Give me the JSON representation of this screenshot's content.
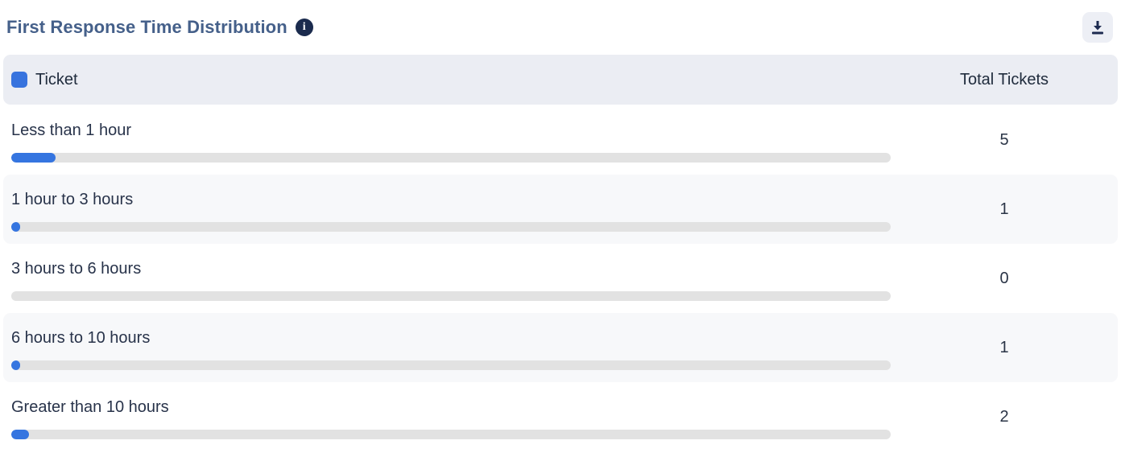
{
  "header": {
    "title": "First Response Time Distribution",
    "info_icon": "info-icon",
    "info_glyph": "i",
    "download_icon": "download-icon"
  },
  "colors": {
    "accent_blue": "#3575e0",
    "legend_blue": "#3773de",
    "title_color": "#45608a",
    "info_badge_bg": "#1b2b4e",
    "header_band_bg": "#ebedf3",
    "alt_row_bg": "#f7f8fa",
    "bar_track": "#e2e2e2"
  },
  "table": {
    "columns": {
      "ticket": "Ticket",
      "total": "Total Tickets"
    },
    "rows": [
      {
        "label": "Less than 1 hour",
        "value": "5",
        "bar_percent": 5
      },
      {
        "label": "1 hour to 3 hours",
        "value": "1",
        "bar_percent": 1
      },
      {
        "label": "3 hours to 6 hours",
        "value": "0",
        "bar_percent": 0
      },
      {
        "label": "6 hours to 10 hours",
        "value": "1",
        "bar_percent": 1
      },
      {
        "label": "Greater than 10 hours",
        "value": "2",
        "bar_percent": 2
      }
    ]
  },
  "chart_data": {
    "type": "bar",
    "orientation": "horizontal",
    "title": "First Response Time Distribution",
    "series_label": "Ticket",
    "value_label": "Total Tickets",
    "categories": [
      "Less than 1 hour",
      "1 hour to 3 hours",
      "3 hours to 6 hours",
      "6 hours to 10 hours",
      "Greater than 10 hours"
    ],
    "values": [
      5,
      1,
      0,
      1,
      2
    ],
    "bar_scale_percent_per_unit": 1,
    "legend_position": "header-left",
    "grid": false
  }
}
